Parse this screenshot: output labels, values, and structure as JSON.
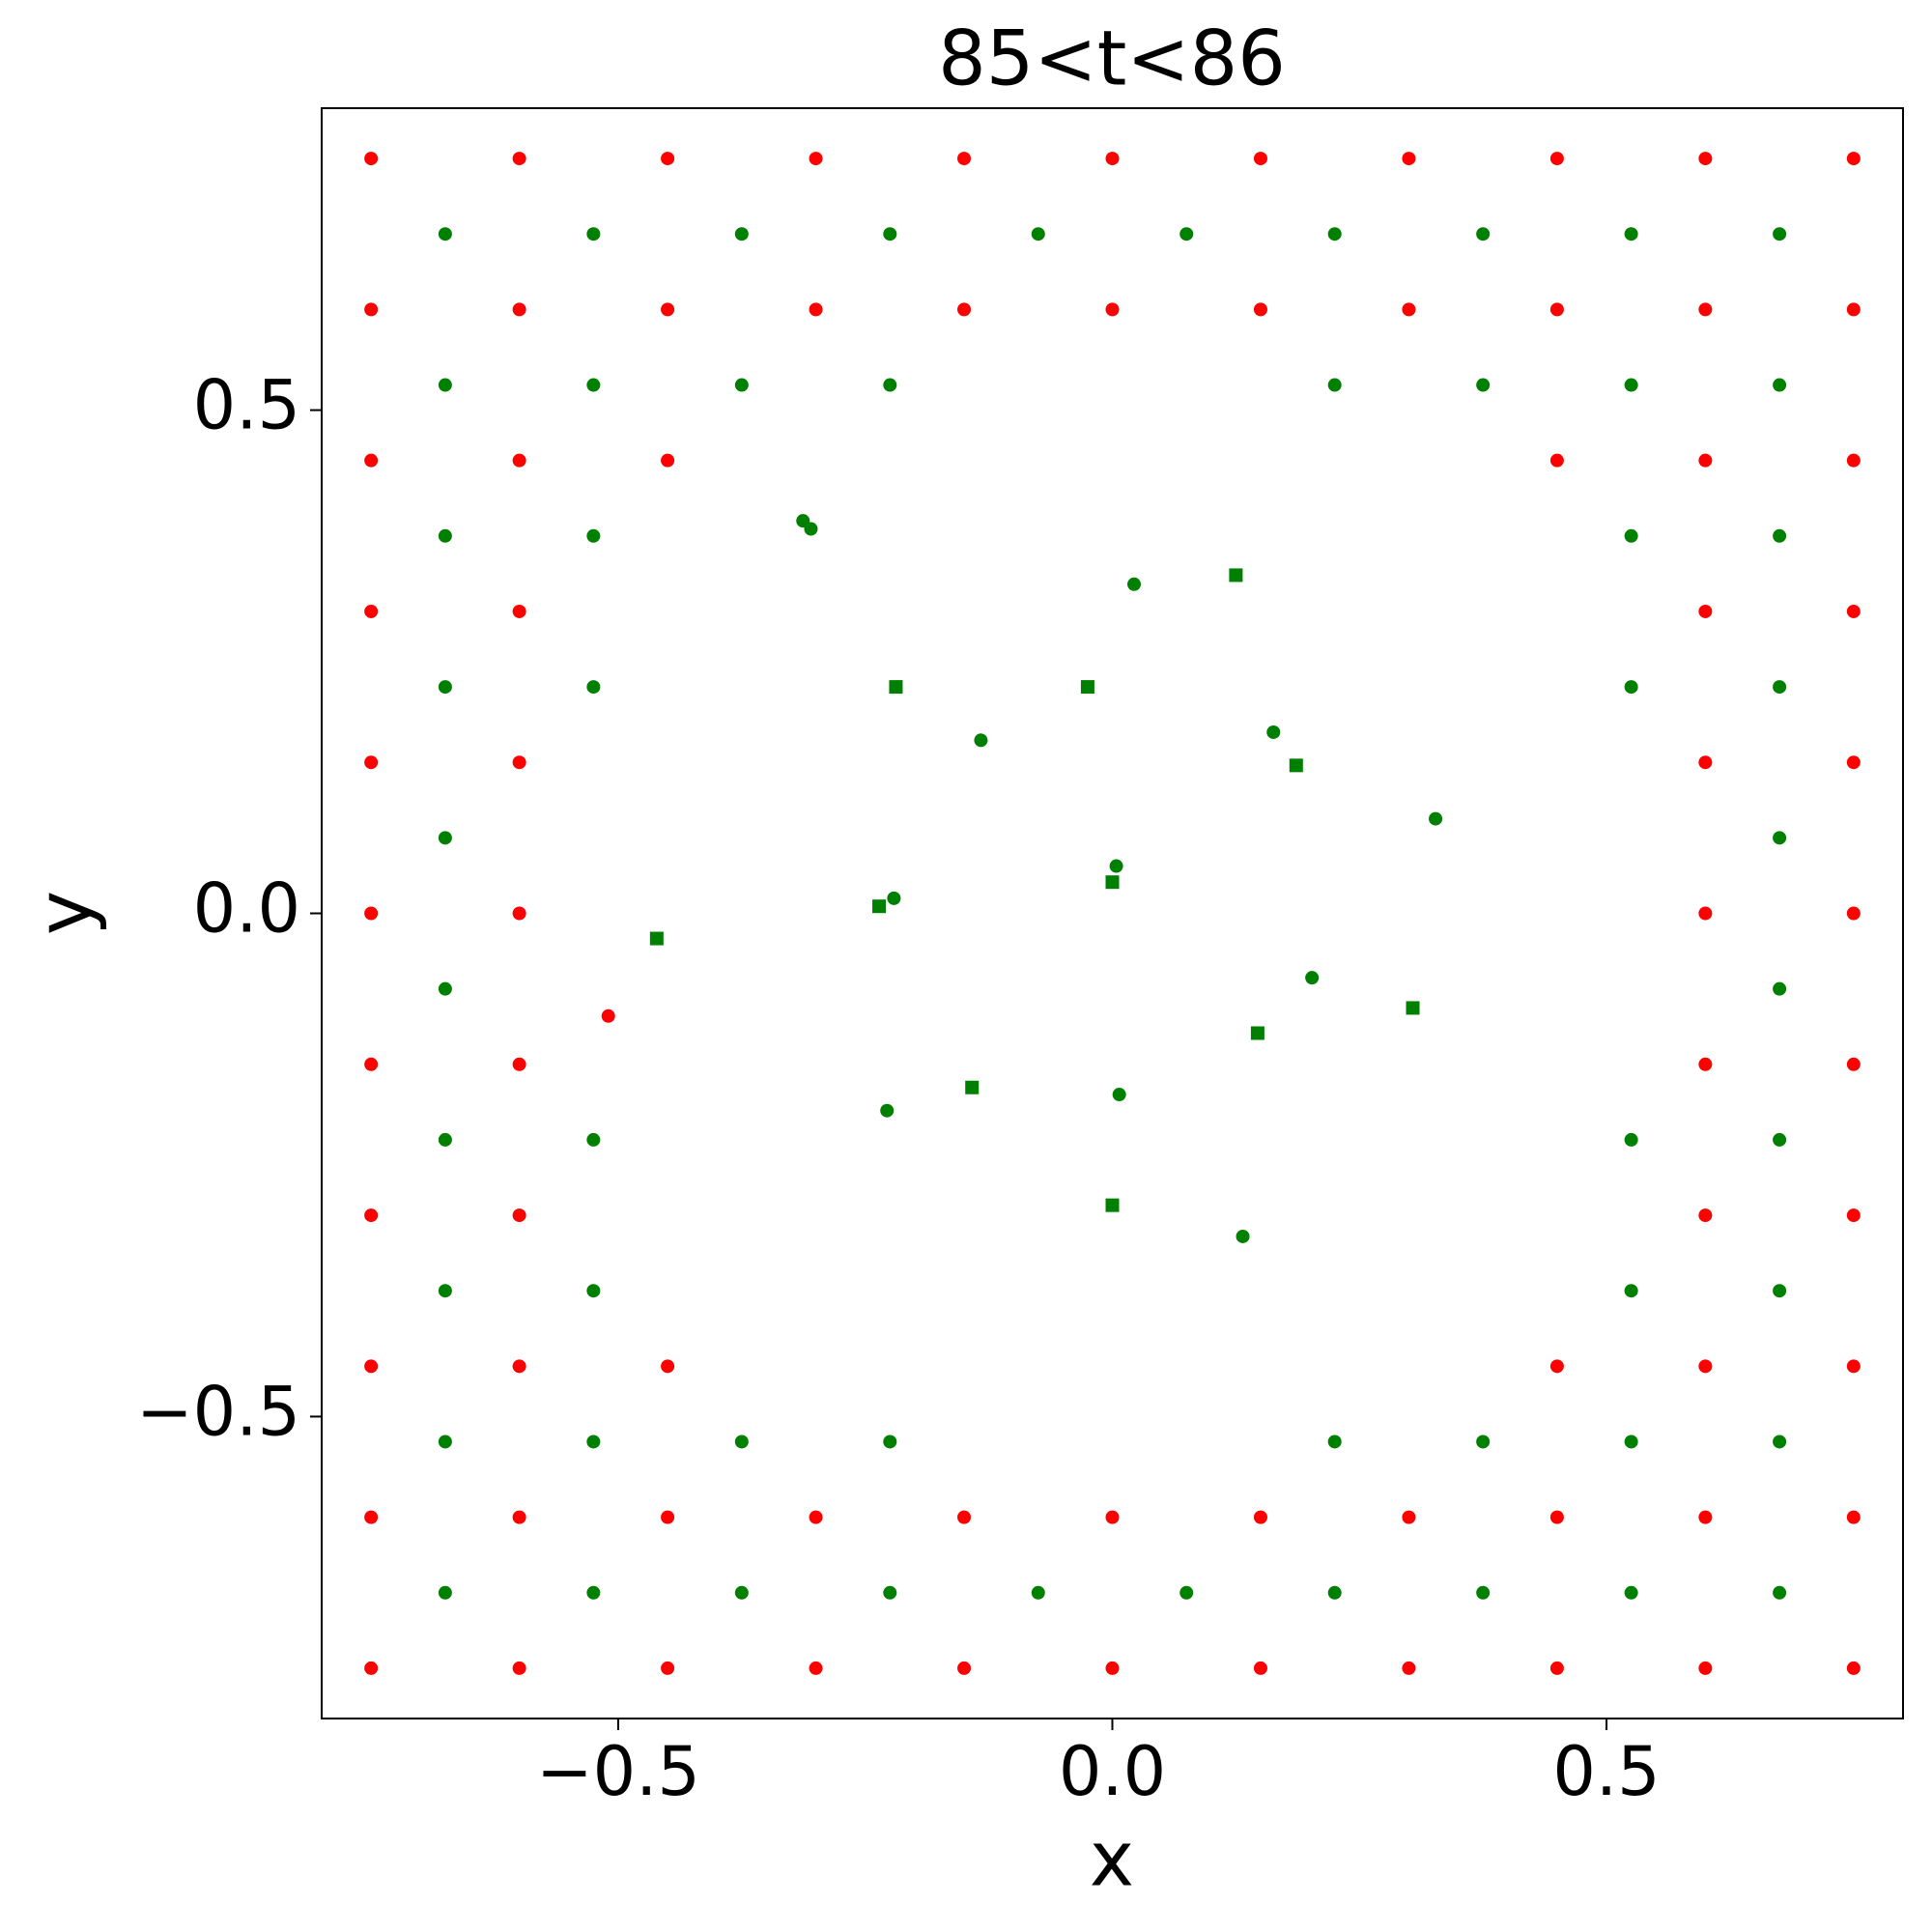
{
  "chart_data": {
    "type": "scatter",
    "title": "85<t<86",
    "xlabel": "x",
    "ylabel": "y",
    "xlim": [
      -0.8,
      0.8
    ],
    "ylim": [
      -0.8,
      0.8
    ],
    "xticks": [
      {
        "value": -0.5,
        "label": "−0.5"
      },
      {
        "value": 0,
        "label": "0.0"
      },
      0.5
    ],
    "yticks": [
      {
        "value": -0.5,
        "label": "−0.5"
      },
      {
        "value": 0,
        "label": "0.0"
      },
      0.5
    ],
    "series": [
      {
        "color": "#ff0000",
        "marker": "circle",
        "x": [
          -0.75,
          -0.75,
          -0.75,
          -0.75,
          -0.75,
          -0.75,
          -0.75,
          -0.75,
          -0.75,
          -0.75,
          -0.75,
          -0.6,
          -0.6,
          -0.6,
          -0.6,
          -0.6,
          -0.6,
          -0.6,
          -0.6,
          -0.6,
          -0.6,
          -0.6,
          -0.45,
          -0.45,
          -0.45,
          -0.45,
          -0.45,
          -0.45,
          -0.3,
          -0.3,
          -0.3,
          -0.3,
          -0.15,
          -0.15,
          -0.15,
          -0.15,
          0,
          0,
          0,
          0,
          0.15,
          0.15,
          0.15,
          0.15,
          0.3,
          0.3,
          0.3,
          0.3,
          0.45,
          0.45,
          0.45,
          0.45,
          0.45,
          0.45,
          0.6,
          0.6,
          0.6,
          0.6,
          0.6,
          0.6,
          0.6,
          0.6,
          0.6,
          0.6,
          0.6,
          0.75,
          0.75,
          0.75,
          0.75,
          0.75,
          0.75,
          0.75,
          0.75,
          0.75,
          0.75,
          0.75
        ],
        "values": [
          -0.75,
          -0.6,
          -0.45,
          -0.3,
          -0.15,
          0,
          0.15,
          0.3,
          0.45,
          0.6,
          0.75,
          -0.75,
          -0.6,
          -0.45,
          -0.3,
          -0.15,
          0,
          0.15,
          0.3,
          0.45,
          0.6,
          0.75,
          -0.75,
          -0.6,
          -0.45,
          0.45,
          0.6,
          0.75,
          -0.75,
          -0.6,
          0.6,
          0.75,
          -0.75,
          -0.6,
          0.6,
          0.75,
          -0.75,
          -0.6,
          0.6,
          0.75,
          -0.75,
          -0.6,
          0.6,
          0.75,
          -0.75,
          -0.6,
          0.6,
          0.75,
          -0.75,
          -0.6,
          -0.45,
          0.45,
          0.6,
          0.75,
          -0.75,
          -0.6,
          -0.45,
          -0.3,
          -0.15,
          0,
          0.15,
          0.3,
          0.45,
          0.6,
          0.75,
          -0.75,
          -0.6,
          -0.45,
          -0.3,
          -0.15,
          0,
          0.15,
          0.3,
          0.45,
          0.6,
          0.75
        ]
      },
      {
        "color": "#008000",
        "marker": "circle",
        "x": [
          -0.675,
          -0.675,
          -0.675,
          -0.675,
          -0.675,
          -0.675,
          -0.675,
          -0.675,
          -0.675,
          -0.675,
          -0.525,
          -0.525,
          -0.525,
          -0.525,
          -0.525,
          -0.525,
          -0.525,
          -0.525,
          -0.375,
          -0.375,
          -0.375,
          -0.375,
          -0.225,
          -0.225,
          -0.225,
          -0.225,
          -0.075,
          -0.075,
          0.075,
          0.075,
          0.225,
          0.225,
          0.225,
          0.225,
          0.375,
          0.375,
          0.375,
          0.375,
          0.525,
          0.525,
          0.525,
          0.525,
          0.525,
          0.525,
          0.525,
          0.525,
          0.675,
          0.675,
          0.675,
          0.675,
          0.675,
          0.675,
          0.675,
          0.675,
          0.675,
          0.675
        ],
        "values": [
          -0.675,
          -0.525,
          -0.375,
          -0.225,
          -0.075,
          0.075,
          0.225,
          0.375,
          0.525,
          0.675,
          -0.675,
          -0.525,
          -0.375,
          -0.225,
          0.225,
          0.375,
          0.525,
          0.675,
          -0.675,
          -0.525,
          0.525,
          0.675,
          -0.675,
          -0.525,
          0.525,
          0.675,
          -0.675,
          0.675,
          -0.675,
          0.675,
          -0.675,
          -0.525,
          0.525,
          0.675,
          -0.675,
          -0.525,
          0.525,
          0.675,
          -0.675,
          -0.525,
          -0.375,
          -0.225,
          0.225,
          0.375,
          0.525,
          0.675,
          -0.675,
          -0.525,
          -0.375,
          -0.225,
          -0.075,
          0.075,
          0.225,
          0.375,
          0.525,
          0.675
        ]
      },
      {
        "color": "#008000",
        "marker": "circle",
        "x": [
          0.022,
          -0.133,
          0.163,
          0.327,
          0.004,
          -0.221,
          0.202,
          0.007,
          -0.228,
          0.132,
          -0.313,
          -0.305
        ],
        "values": [
          0.327,
          0.172,
          0.18,
          0.094,
          0.047,
          0.015,
          -0.064,
          -0.18,
          -0.196,
          -0.321,
          0.39,
          0.382
        ]
      },
      {
        "color": "#008000",
        "marker": "square",
        "x": [
          0.125,
          -0.219,
          -0.025,
          0.186,
          0,
          -0.236,
          -0.461,
          0.304,
          0.147,
          -0.142,
          0
        ],
        "values": [
          0.336,
          0.225,
          0.225,
          0.147,
          0.031,
          0.007,
          -0.025,
          -0.094,
          -0.119,
          -0.173,
          -0.29
        ]
      },
      {
        "color": "#ff0000",
        "marker": "circle",
        "x": [
          -0.51
        ],
        "values": [
          -0.102
        ]
      }
    ]
  }
}
